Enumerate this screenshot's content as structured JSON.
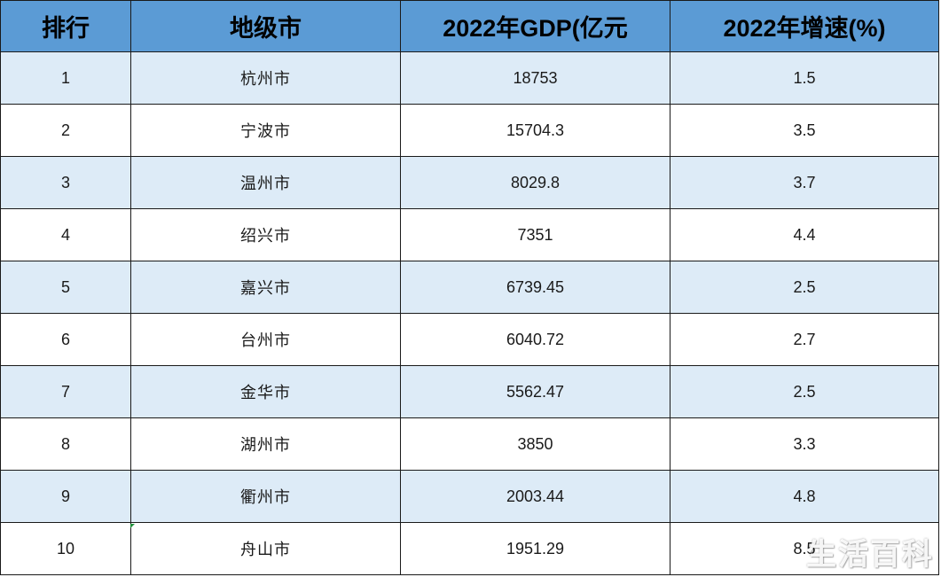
{
  "table": {
    "headers": {
      "rank": "排行",
      "city": "地级市",
      "gdp": "2022年GDP(亿元",
      "growth": "2022年增速(%)"
    },
    "rows": [
      {
        "rank": "1",
        "city": "杭州市",
        "gdp": "18753",
        "growth": "1.5"
      },
      {
        "rank": "2",
        "city": "宁波市",
        "gdp": "15704.3",
        "growth": "3.5"
      },
      {
        "rank": "3",
        "city": "温州市",
        "gdp": "8029.8",
        "growth": "3.7"
      },
      {
        "rank": "4",
        "city": "绍兴市",
        "gdp": "7351",
        "growth": "4.4"
      },
      {
        "rank": "5",
        "city": "嘉兴市",
        "gdp": "6739.45",
        "growth": "2.5"
      },
      {
        "rank": "6",
        "city": "台州市",
        "gdp": "6040.72",
        "growth": "2.7"
      },
      {
        "rank": "7",
        "city": "金华市",
        "gdp": "5562.47",
        "growth": "2.5"
      },
      {
        "rank": "8",
        "city": "湖州市",
        "gdp": "3850",
        "growth": "3.3"
      },
      {
        "rank": "9",
        "city": "衢州市",
        "gdp": "2003.44",
        "growth": "4.8"
      },
      {
        "rank": "10",
        "city": "舟山市",
        "gdp": "1951.29",
        "growth": "8.5"
      }
    ]
  },
  "watermark": {
    "text": "生活百科"
  },
  "colors": {
    "header_bg": "#5b9bd5",
    "alt_row_bg": "#ddebf7",
    "plain_row_bg": "#ffffff",
    "border": "#1a1a1a"
  }
}
